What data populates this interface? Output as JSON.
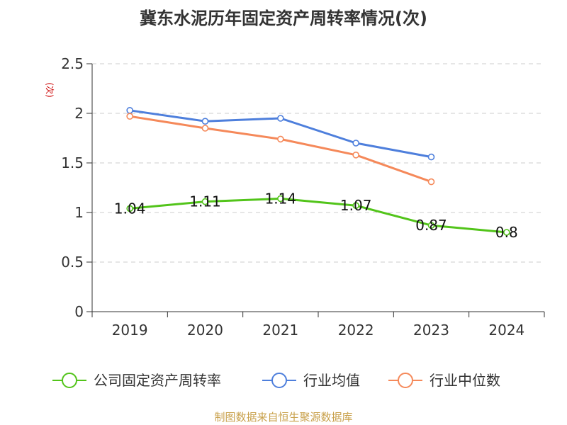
{
  "colors": {
    "company": "#52c41a",
    "industry_avg": "#4e7fdc",
    "industry_median": "#f5895a",
    "grid": "#cccccc",
    "axis": "#333333"
  },
  "chart_data": {
    "type": "line",
    "title": "冀东水泥历年固定资产周转率情况(次)",
    "ylabel": "(次)",
    "xlabel": "",
    "categories": [
      "2019",
      "2020",
      "2021",
      "2022",
      "2023",
      "2024"
    ],
    "ylim": [
      0,
      2.5
    ],
    "yticks": [
      0,
      0.5,
      1,
      1.5,
      2,
      2.5
    ],
    "ytick_labels": [
      "0",
      "0.5",
      "1",
      "1.5",
      "2",
      "2.5"
    ],
    "grid": true,
    "legend_position": "bottom",
    "series": [
      {
        "name": "公司固定资产周转率",
        "color_key": "company",
        "values": [
          1.04,
          1.11,
          1.14,
          1.07,
          0.87,
          0.8
        ],
        "labels": [
          "1.04",
          "1.11",
          "1.14",
          "1.07",
          "0.87",
          "0.8"
        ]
      },
      {
        "name": "行业均值",
        "color_key": "industry_avg",
        "values": [
          2.03,
          1.92,
          1.95,
          1.7,
          1.56,
          null
        ]
      },
      {
        "name": "行业中位数",
        "color_key": "industry_median",
        "values": [
          1.97,
          1.85,
          1.74,
          1.58,
          1.31,
          null
        ]
      }
    ]
  },
  "footer": {
    "source": "制图数据来自恒生聚源数据库"
  }
}
